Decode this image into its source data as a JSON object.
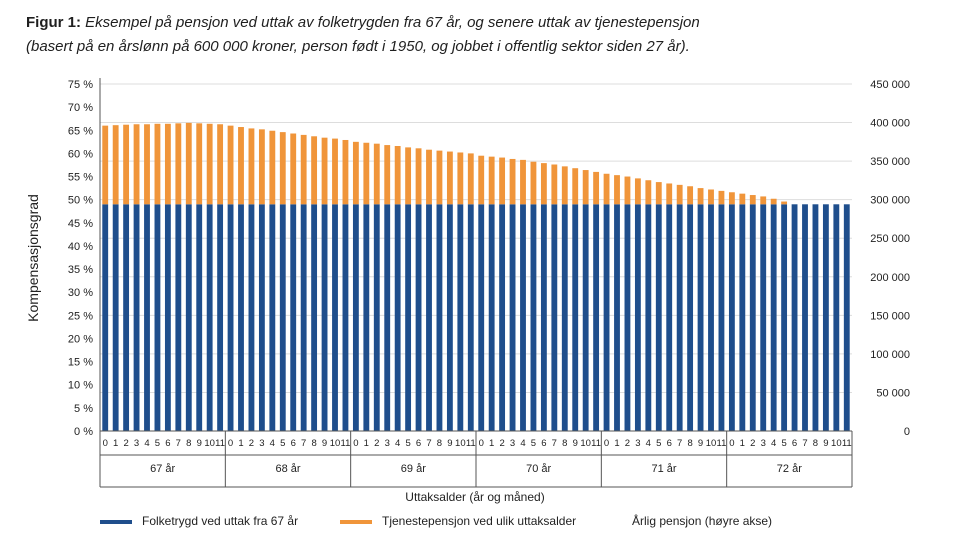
{
  "title": {
    "figure_label": "Figur 1:",
    "line1": "Eksempel på pensjon ved uttak av folketrygden fra 67 år, og senere uttak av tjenestepensjon",
    "line2": "(basert på en årslønn på 600 000 kroner, person født i 1950, og jobbet i offentlig sektor siden 27 år)."
  },
  "colors": {
    "folketrygd": "#1f4e8c",
    "tjenestepensjon": "#f0953a",
    "axis": "#555555",
    "grid": "#dddddd"
  },
  "chart_data": {
    "type": "bar",
    "stacked": true,
    "ylabel": "Kompensasjonsgrad",
    "y2label": "Årlig pensjon (høyre akse)",
    "xlabel": "Uttaksalder (år og måned)",
    "ylim": [
      0,
      75
    ],
    "y2lim": [
      0,
      450000
    ],
    "yticks": [
      "0 %",
      "5 %",
      "10 %",
      "15 %",
      "20 %",
      "25 %",
      "30 %",
      "35 %",
      "40 %",
      "45 %",
      "50 %",
      "55 %",
      "60 %",
      "65 %",
      "70 %",
      "75 %"
    ],
    "y2ticks": [
      "0",
      "50 000",
      "100 000",
      "150 000",
      "200 000",
      "250 000",
      "300 000",
      "350 000",
      "400 000",
      "450 000"
    ],
    "months": [
      "0",
      "1",
      "2",
      "3",
      "4",
      "5",
      "6",
      "7",
      "8",
      "9",
      "10",
      "11"
    ],
    "years": [
      "67 år",
      "68 år",
      "69 år",
      "70 år",
      "71 år",
      "72 år"
    ],
    "series": [
      {
        "name": "Folketrygd ved uttak fra 67 år",
        "values": [
          49,
          49,
          49,
          49,
          49,
          49,
          49,
          49,
          49,
          49,
          49,
          49,
          49,
          49,
          49,
          49,
          49,
          49,
          49,
          49,
          49,
          49,
          49,
          49,
          49,
          49,
          49,
          49,
          49,
          49,
          49,
          49,
          49,
          49,
          49,
          49,
          49,
          49,
          49,
          49,
          49,
          49,
          49,
          49,
          49,
          49,
          49,
          49,
          49,
          49,
          49,
          49,
          49,
          49,
          49,
          49,
          49,
          49,
          49,
          49,
          49,
          49,
          49,
          49,
          49,
          49,
          49,
          49,
          49,
          49,
          49,
          49
        ]
      },
      {
        "name": "Tjenestepensjon ved ulik uttaksalder",
        "values": [
          17.0,
          17.1,
          17.2,
          17.3,
          17.3,
          17.4,
          17.4,
          17.5,
          17.6,
          17.5,
          17.4,
          17.3,
          17.0,
          16.7,
          16.4,
          16.2,
          15.9,
          15.6,
          15.3,
          15.0,
          14.7,
          14.4,
          14.2,
          13.9,
          13.5,
          13.3,
          13.1,
          12.8,
          12.6,
          12.3,
          12.1,
          11.8,
          11.6,
          11.4,
          11.2,
          11.0,
          10.5,
          10.3,
          10.1,
          9.8,
          9.6,
          9.2,
          8.9,
          8.6,
          8.2,
          7.8,
          7.4,
          7.0,
          6.6,
          6.3,
          6.0,
          5.6,
          5.2,
          4.8,
          4.5,
          4.2,
          3.9,
          3.5,
          3.2,
          2.9,
          2.6,
          2.3,
          2.0,
          1.7,
          1.2,
          0.6,
          0.0,
          0.0,
          0.0,
          0.0,
          0.0,
          0.0
        ]
      }
    ]
  }
}
